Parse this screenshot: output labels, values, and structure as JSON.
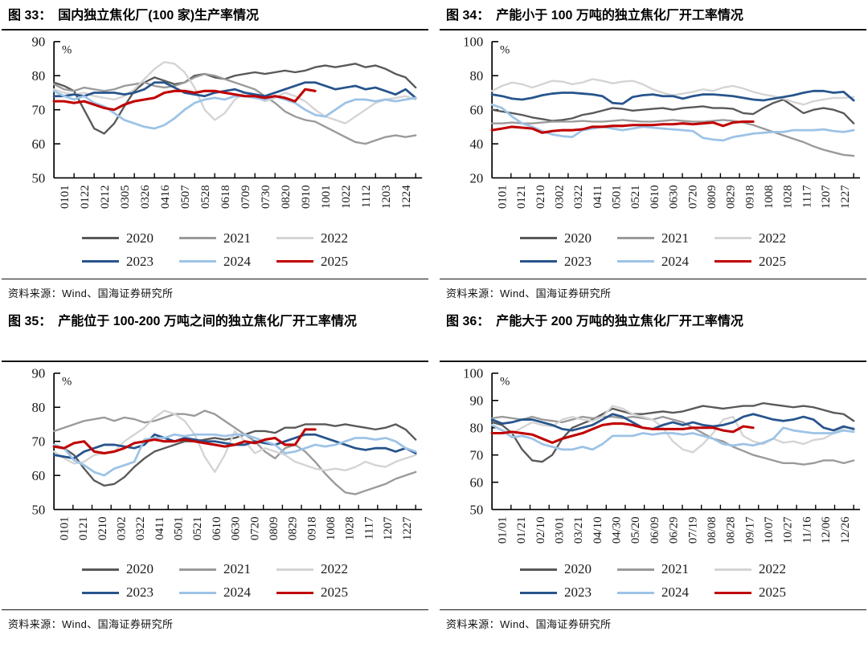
{
  "page": {
    "source_label": "资料来源：Wind、国海证券研究所"
  },
  "chart_data": [
    {
      "id": "fig33",
      "type": "line",
      "title": "图 33：　国内独立焦化厂(100 家)生产率情况",
      "source": "资料来源：Wind、国海证券研究所",
      "ylabel": "%",
      "ylim": [
        50,
        90
      ],
      "yticks": [
        50,
        60,
        70,
        80,
        90
      ],
      "grid": false,
      "legend_position": "bottom",
      "categories": [
        "0101",
        "0122",
        "0212",
        "0305",
        "0326",
        "0416",
        "0507",
        "0528",
        "0618",
        "0709",
        "0730",
        "0820",
        "0910",
        "1001",
        "1022",
        "1112",
        "1203",
        "1224"
      ],
      "series": [
        {
          "name": "2020",
          "color": "#595959",
          "values": [
            78,
            77,
            75.5,
            70,
            64.5,
            63,
            66,
            71,
            75.5,
            78,
            79.5,
            78.5,
            77.5,
            78,
            80,
            80.5,
            79.5,
            79,
            80,
            80.5,
            81,
            80.5,
            81,
            81.5,
            81,
            81.5,
            82.5,
            83,
            82.5,
            83,
            83.5,
            82.5,
            83,
            82,
            80.5,
            79.5,
            76.5
          ]
        },
        {
          "name": "2021",
          "color": "#9a9a9a",
          "values": [
            77.5,
            76,
            75.5,
            76.5,
            76,
            75.5,
            76,
            77,
            77.5,
            78,
            77,
            76.5,
            77,
            78,
            79.5,
            80.5,
            80,
            79,
            78,
            77,
            76,
            74,
            72,
            69.5,
            68,
            67,
            66.5,
            65,
            63.5,
            62,
            60.5,
            60,
            61,
            62,
            62.5,
            62,
            62.5
          ]
        },
        {
          "name": "2022",
          "color": "#d4d4d4",
          "values": [
            76,
            75,
            74.5,
            75,
            74,
            73.5,
            73,
            74,
            76,
            79,
            82,
            84,
            83.5,
            81,
            76.5,
            70,
            67,
            69,
            73,
            75,
            74,
            72.5,
            73.5,
            75,
            74,
            72.5,
            70,
            68,
            67,
            66,
            68,
            70,
            72,
            73,
            73.5,
            74,
            73
          ]
        },
        {
          "name": "2023",
          "color": "#27548c",
          "values": [
            74,
            74,
            74.5,
            74,
            75,
            75,
            75,
            74.5,
            75,
            76,
            78,
            78,
            76.5,
            75,
            74.5,
            74,
            75,
            75.5,
            76,
            75,
            74.5,
            74,
            75,
            76,
            77,
            78,
            78,
            77,
            76,
            76.5,
            77,
            76,
            76.5,
            75.5,
            74.5,
            76,
            73.5
          ]
        },
        {
          "name": "2024",
          "color": "#9dc3e6",
          "values": [
            75.5,
            74,
            73,
            74,
            72,
            71,
            69,
            67,
            66,
            65,
            64.5,
            65.5,
            67.5,
            70,
            72,
            73,
            73.5,
            73,
            74,
            74,
            73.5,
            73,
            74,
            73,
            72,
            70,
            68.5,
            68,
            70,
            72,
            73,
            73,
            72.5,
            73,
            72.5,
            73,
            73.5
          ]
        },
        {
          "name": "2025",
          "color": "#c00000",
          "values": [
            72.5,
            72.5,
            72,
            72.5,
            71.5,
            70.5,
            70,
            71.5,
            72.5,
            73,
            73.5,
            75,
            75.5,
            75.5,
            75,
            75.5,
            75.5,
            75,
            74.5,
            74,
            74,
            73.5,
            74,
            73.5,
            72.5,
            76,
            75.5
          ]
        }
      ]
    },
    {
      "id": "fig34",
      "type": "line",
      "title": "图 34：　产能小于 100 万吨的独立焦化厂开工率情况",
      "source": "资料来源：Wind、国海证券研究所",
      "ylabel": "%",
      "ylim": [
        20,
        100
      ],
      "yticks": [
        20,
        40,
        60,
        80,
        100
      ],
      "grid": false,
      "legend_position": "bottom",
      "categories": [
        "0101",
        "0121",
        "0210",
        "0302",
        "0322",
        "0411",
        "0501",
        "0521",
        "0610",
        "0630",
        "0720",
        "0809",
        "0829",
        "0918",
        "1008",
        "1028",
        "1117",
        "1207",
        "1227"
      ],
      "series": [
        {
          "name": "2020",
          "color": "#595959",
          "values": [
            60,
            59,
            58,
            57,
            55.5,
            54.5,
            53.5,
            54,
            55,
            57,
            58,
            59.5,
            61,
            60.5,
            59.5,
            60,
            60.5,
            61,
            60,
            61,
            61.5,
            62,
            61,
            61,
            60.5,
            58,
            57.5,
            61,
            64,
            66,
            62,
            58,
            60,
            61,
            60,
            58,
            52
          ]
        },
        {
          "name": "2021",
          "color": "#9a9a9a",
          "values": [
            52,
            52,
            52.5,
            52,
            52,
            52.5,
            53,
            53,
            53,
            53.5,
            53,
            53,
            53.5,
            54,
            53.5,
            53,
            53,
            53.5,
            54,
            53.5,
            53,
            53,
            53.5,
            54,
            53.5,
            52.5,
            51,
            49,
            47,
            45,
            43,
            41,
            38.5,
            36.5,
            35,
            33.5,
            33
          ]
        },
        {
          "name": "2022",
          "color": "#d4d4d4",
          "values": [
            71,
            74,
            76,
            75,
            73,
            75,
            77,
            76.5,
            75,
            76,
            78,
            77,
            75.5,
            76.5,
            77,
            75,
            72,
            70,
            68.5,
            69.5,
            70.5,
            72,
            71,
            73,
            74,
            72.5,
            70.5,
            69,
            68,
            66.5,
            64.5,
            63,
            65,
            66,
            67,
            67,
            67.5
          ]
        },
        {
          "name": "2023",
          "color": "#27548c",
          "values": [
            69,
            68,
            66.5,
            66,
            67,
            68.5,
            69.5,
            70,
            70,
            69.5,
            69,
            68,
            64,
            63.5,
            67.5,
            68.5,
            69,
            68,
            68,
            66.5,
            68,
            69,
            69,
            68.5,
            68,
            67,
            66,
            65.5,
            66.5,
            67.5,
            68.5,
            70,
            71,
            71,
            70,
            70.5,
            65.5
          ]
        },
        {
          "name": "2024",
          "color": "#9dc3e6",
          "values": [
            63,
            61,
            56,
            52,
            50,
            47.5,
            45.5,
            44.5,
            44,
            48,
            49,
            50,
            49,
            48,
            49,
            50,
            49.5,
            49,
            48.5,
            48,
            47.5,
            43.5,
            42.5,
            42,
            44,
            45,
            46,
            46.5,
            47,
            47,
            48,
            48,
            48,
            48.5,
            47.5,
            47,
            48
          ]
        },
        {
          "name": "2025",
          "color": "#c00000",
          "values": [
            48,
            49,
            50,
            49.5,
            49,
            46.5,
            47.5,
            48,
            48,
            48.5,
            50,
            50,
            50.5,
            50.5,
            51,
            51,
            51,
            51.5,
            51.5,
            52,
            51.5,
            52,
            52.5,
            50.5,
            52.5,
            53,
            53
          ]
        }
      ]
    },
    {
      "id": "fig35",
      "type": "line",
      "title": "图 35：　产能位于 100-200 万吨之间的独立焦化厂开工率情况",
      "source": "资料来源：Wind、国海证券研究所",
      "ylabel": "%",
      "ylim": [
        50,
        90
      ],
      "yticks": [
        50,
        60,
        70,
        80,
        90
      ],
      "grid": false,
      "legend_position": "bottom",
      "categories": [
        "0101",
        "0121",
        "0210",
        "0302",
        "0322",
        "0411",
        "0501",
        "0521",
        "0610",
        "0630",
        "0720",
        "0809",
        "0829",
        "0918",
        "1008",
        "1028",
        "1117",
        "1207",
        "1227"
      ],
      "series": [
        {
          "name": "2020",
          "color": "#595959",
          "values": [
            69,
            68,
            66,
            62,
            58.5,
            57,
            57.5,
            59.5,
            62.5,
            65,
            67,
            68,
            69,
            70,
            70,
            70.5,
            71,
            70.5,
            71,
            72,
            73,
            73,
            72.5,
            74,
            74,
            75,
            75,
            75,
            74.5,
            75,
            74.5,
            74,
            73.5,
            74,
            75,
            73.5,
            70.5
          ]
        },
        {
          "name": "2021",
          "color": "#9a9a9a",
          "values": [
            73,
            74,
            75,
            76,
            76.5,
            77,
            76,
            77,
            76.5,
            75.5,
            76,
            77,
            78,
            78,
            77.5,
            79,
            78,
            76,
            74,
            72,
            70,
            67,
            65,
            68,
            69,
            67,
            64,
            60.5,
            57.5,
            55,
            54.5,
            55.5,
            56.5,
            57.5,
            59,
            60,
            61
          ]
        },
        {
          "name": "2022",
          "color": "#d4d4d4",
          "values": [
            67,
            65,
            63.5,
            64,
            66,
            66.5,
            67,
            70,
            72,
            74,
            77,
            79,
            78,
            76,
            72,
            65.5,
            61,
            66,
            73,
            70,
            66.5,
            68,
            67,
            66,
            64,
            63,
            62,
            61.5,
            62,
            61.5,
            62.5,
            64,
            63,
            62.5,
            64,
            65,
            66
          ]
        },
        {
          "name": "2023",
          "color": "#27548c",
          "values": [
            66,
            65.5,
            65,
            67,
            68,
            69,
            69,
            68.5,
            68,
            69,
            72,
            71,
            70,
            71,
            70.5,
            70,
            70,
            69.5,
            69,
            69,
            70,
            69.5,
            69,
            70,
            71,
            72,
            72,
            71,
            70,
            69,
            68,
            67.5,
            68,
            68,
            67,
            68,
            66.5
          ]
        },
        {
          "name": "2024",
          "color": "#9dc3e6",
          "values": [
            69,
            68,
            64.5,
            63,
            61,
            60,
            62,
            63,
            64,
            70.5,
            71,
            71,
            72,
            71.5,
            72,
            72,
            72,
            71.5,
            72,
            72,
            71,
            70,
            69,
            66.5,
            67,
            68,
            69,
            68.5,
            69,
            70,
            71,
            71,
            70.5,
            71,
            70,
            68,
            67
          ]
        },
        {
          "name": "2025",
          "color": "#c00000",
          "values": [
            68.5,
            68,
            69.5,
            70,
            67,
            66.5,
            67,
            68,
            69.5,
            70,
            70.5,
            70,
            70,
            70.5,
            70,
            69.5,
            69,
            68.5,
            69,
            70,
            69.5,
            70.5,
            71,
            69,
            69,
            73.5,
            73.5
          ]
        }
      ]
    },
    {
      "id": "fig36",
      "type": "line",
      "title": "图 36：　产能大于 200 万吨的独立焦化厂开工率情况",
      "source": "资料来源：Wind、国海证券研究所",
      "ylabel": "%",
      "ylim": [
        50,
        100
      ],
      "yticks": [
        50,
        60,
        70,
        80,
        90,
        100
      ],
      "grid": false,
      "legend_position": "bottom",
      "categories": [
        "01/01",
        "01/21",
        "02/10",
        "03/01",
        "03/21",
        "04/10",
        "04/30",
        "05/20",
        "06/09",
        "06/29",
        "07/19",
        "08/08",
        "08/28",
        "09/17",
        "10/07",
        "10/27",
        "11/16",
        "12/06",
        "12/26"
      ],
      "series": [
        {
          "name": "2020",
          "color": "#595959",
          "values": [
            82,
            81,
            78,
            72,
            68,
            67.5,
            70,
            76,
            80,
            81.5,
            83,
            85,
            87,
            86,
            85,
            85,
            85.5,
            86,
            85.5,
            86,
            87,
            88,
            87.5,
            87,
            87.5,
            88,
            88,
            89,
            88.5,
            88,
            87.5,
            88,
            87.5,
            86.5,
            85.5,
            85,
            82.5
          ]
        },
        {
          "name": "2021",
          "color": "#9a9a9a",
          "values": [
            83.5,
            84,
            83.5,
            83,
            84,
            83,
            82.5,
            82,
            83,
            84,
            83.5,
            84,
            84,
            83.5,
            84,
            83.5,
            83,
            84,
            83,
            82,
            80,
            78,
            76,
            75,
            73,
            71.5,
            70,
            69,
            68,
            67,
            67,
            66.5,
            67,
            68,
            68,
            67,
            68
          ]
        },
        {
          "name": "2022",
          "color": "#d4d4d4",
          "values": [
            81,
            79,
            78,
            80,
            82,
            81,
            80.5,
            83,
            84,
            83,
            82.5,
            84,
            88,
            87,
            85,
            84,
            83,
            80,
            75,
            72,
            71,
            74,
            78,
            83,
            84,
            77,
            75,
            74,
            76,
            74.5,
            75,
            74,
            75.5,
            76,
            78,
            80,
            80
          ]
        },
        {
          "name": "2023",
          "color": "#27548c",
          "values": [
            83,
            81.5,
            82,
            83,
            83,
            82,
            81,
            79.5,
            79,
            80,
            81,
            83,
            85,
            84,
            82,
            80,
            79.5,
            81,
            82,
            81,
            82,
            81,
            80.5,
            81,
            82,
            84,
            85,
            84,
            83,
            82.5,
            83,
            84,
            83,
            80,
            79,
            80.5,
            79.5
          ]
        },
        {
          "name": "2024",
          "color": "#9dc3e6",
          "values": [
            81,
            79,
            76.5,
            77,
            76,
            74,
            73,
            72,
            72,
            73,
            72,
            74,
            77,
            77,
            77,
            78,
            77.5,
            78,
            78,
            77.5,
            78,
            77,
            76,
            74,
            73.5,
            74,
            73.5,
            74.5,
            76,
            80,
            79,
            78.5,
            78,
            78,
            78,
            79,
            78.5
          ]
        },
        {
          "name": "2025",
          "color": "#c00000",
          "values": [
            78,
            78,
            78.5,
            78,
            77.5,
            76,
            74.5,
            76,
            77,
            78,
            79.5,
            81,
            81.5,
            81.5,
            81,
            80,
            79.5,
            79.5,
            79.5,
            79.5,
            80,
            80,
            80,
            79,
            78.5,
            80.5,
            80
          ]
        }
      ]
    }
  ]
}
